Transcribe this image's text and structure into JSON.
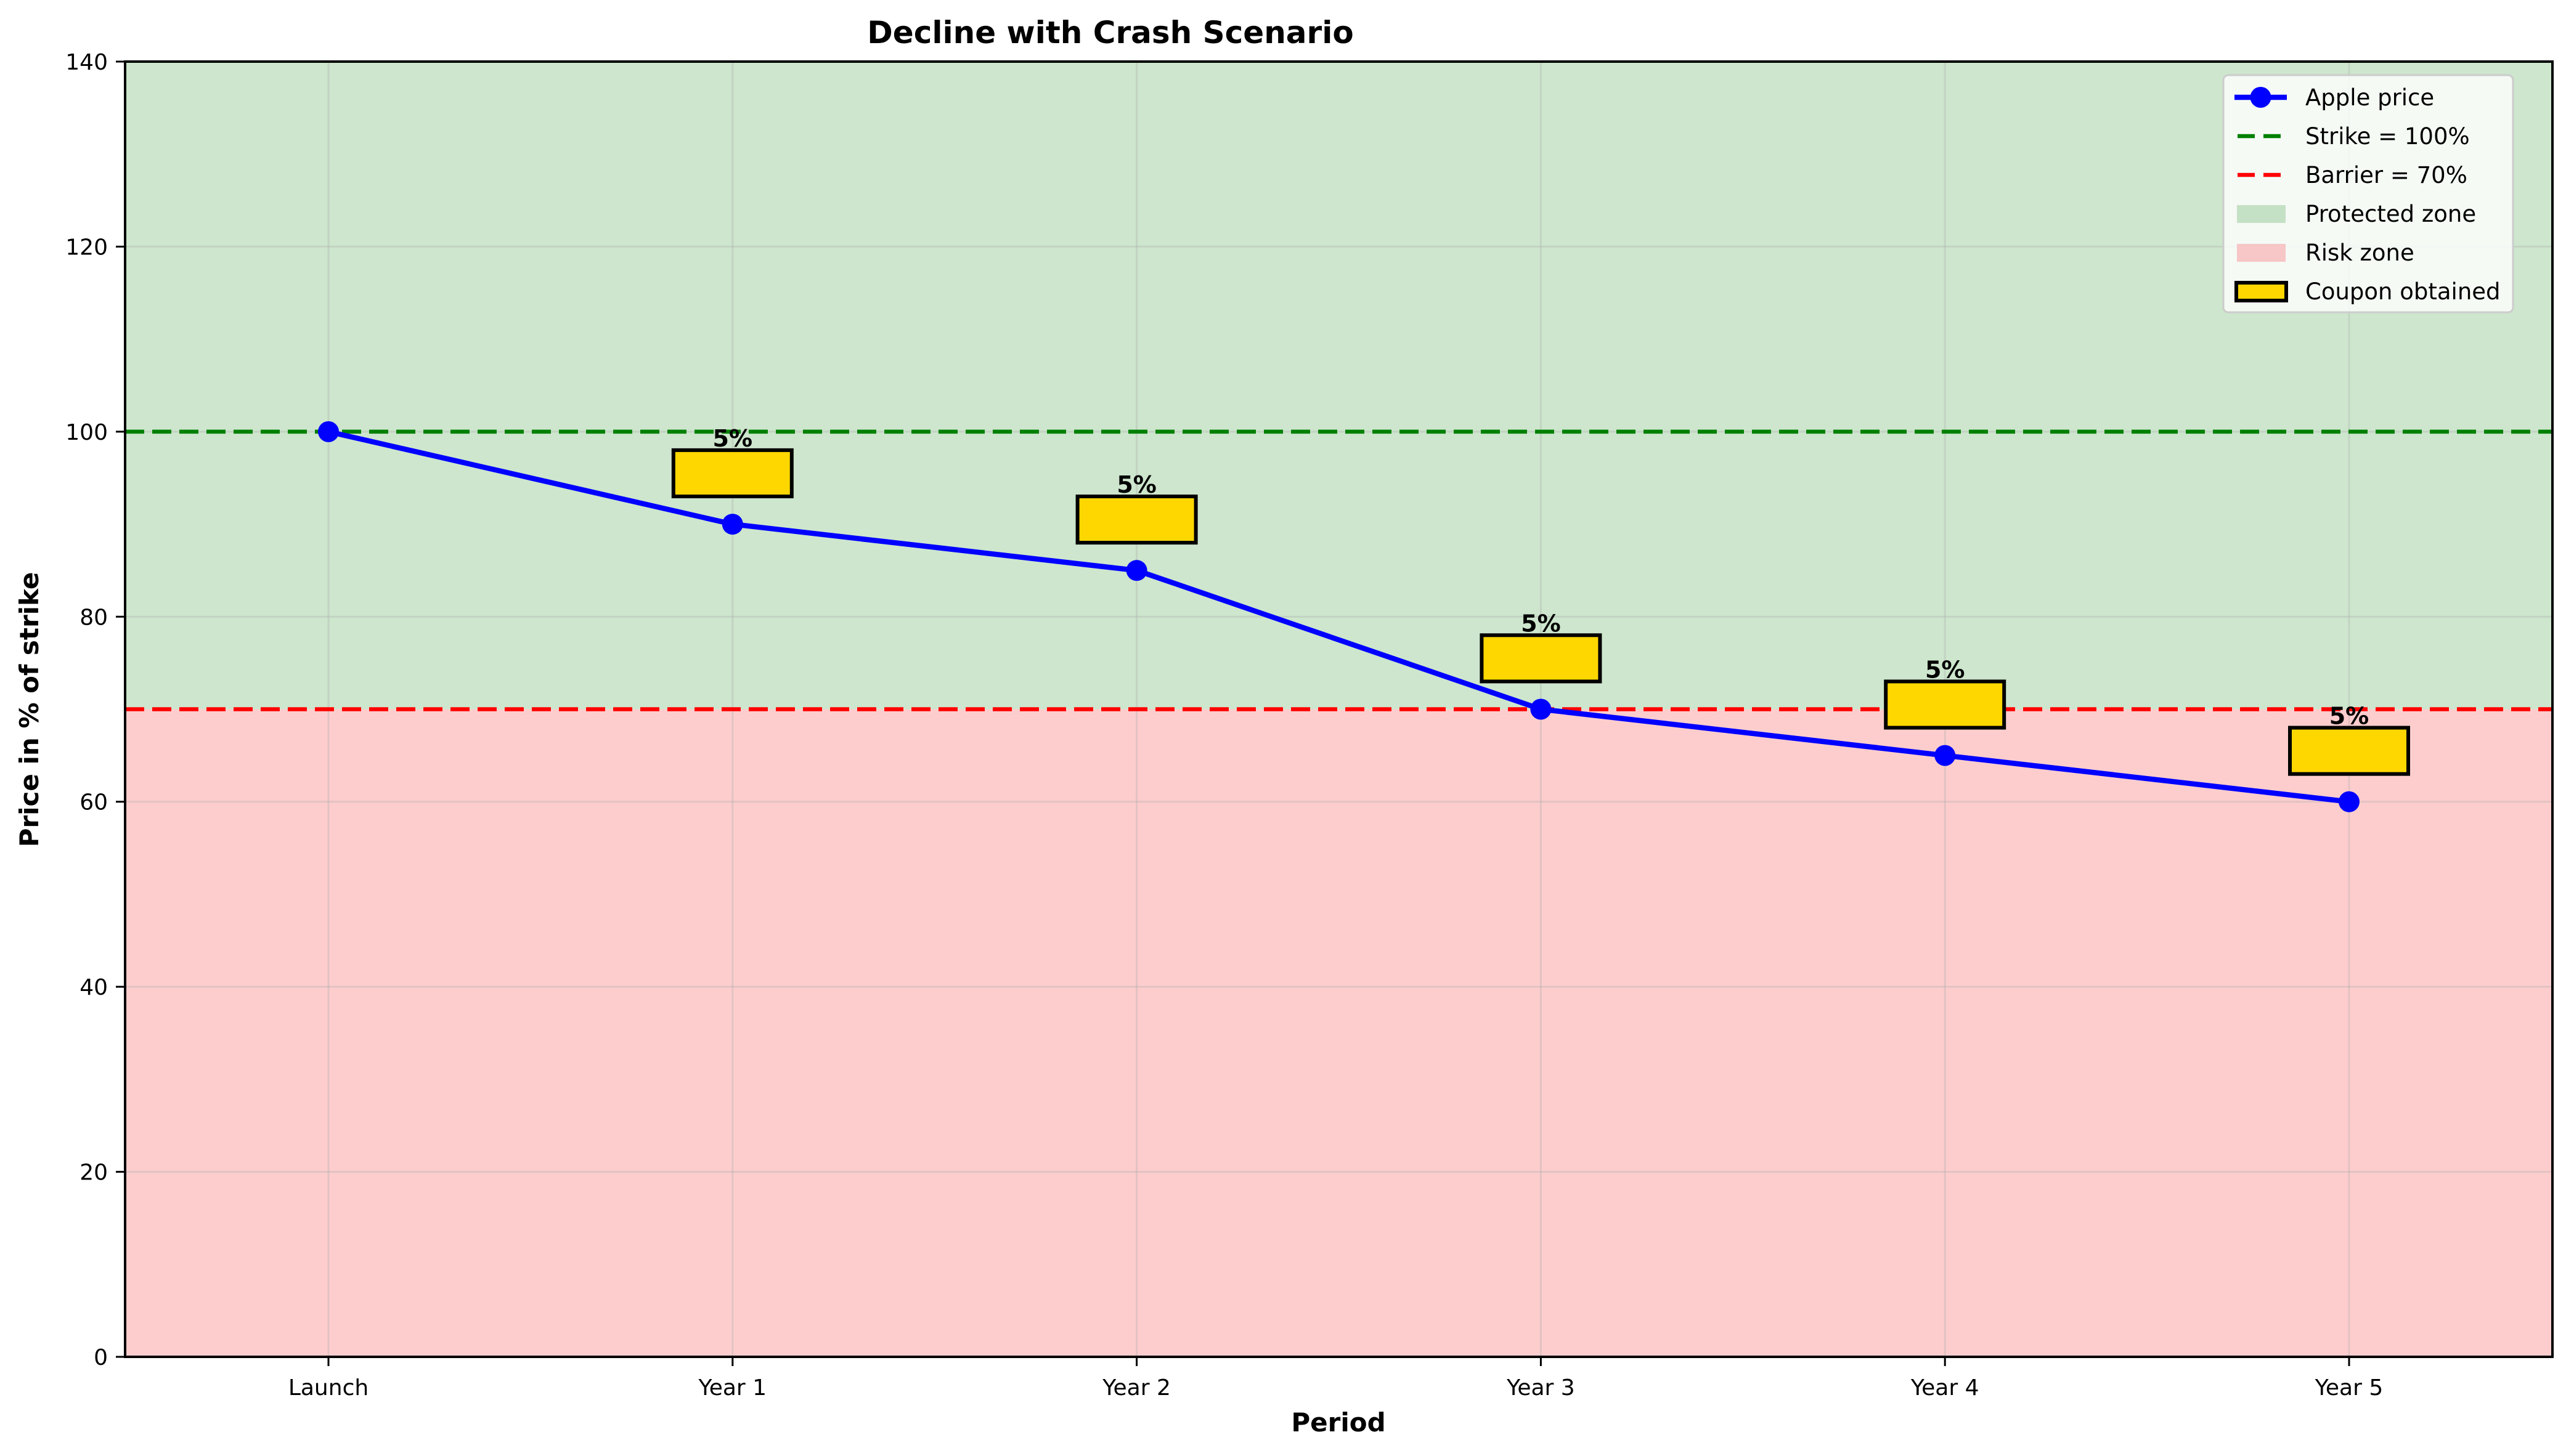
{
  "chart_data": {
    "type": "line",
    "title": "Decline with Crash Scenario",
    "xlabel": "Period",
    "ylabel": "Price in % of strike",
    "categories": [
      "Launch",
      "Year 1",
      "Year 2",
      "Year 3",
      "Year 4",
      "Year 5"
    ],
    "ylim": [
      0,
      140
    ],
    "yticks": [
      0,
      20,
      40,
      60,
      80,
      100,
      120,
      140
    ],
    "grid": true,
    "legend_position": "upper right",
    "series": [
      {
        "name": "Apple price",
        "color": "#0000ff",
        "marker": "circle",
        "values": [
          100,
          90,
          85,
          70,
          65,
          60
        ]
      }
    ],
    "reference_lines": [
      {
        "name": "Strike = 100%",
        "y": 100,
        "color": "#008000",
        "style": "dashed"
      },
      {
        "name": "Barrier = 70%",
        "y": 70,
        "color": "#ff0000",
        "style": "dashed"
      }
    ],
    "zones": [
      {
        "name": "Protected zone",
        "from": 70,
        "to": 140,
        "color": "#c8e3c8"
      },
      {
        "name": "Risk zone",
        "from": 0,
        "to": 70,
        "color": "#fdc8c8"
      }
    ],
    "coupons": {
      "name": "Coupon obtained",
      "color": "#ffd700",
      "items": [
        {
          "period": "Year 1",
          "label": "5%",
          "bottom": 93,
          "top": 98
        },
        {
          "period": "Year 2",
          "label": "5%",
          "bottom": 88,
          "top": 93
        },
        {
          "period": "Year 3",
          "label": "5%",
          "bottom": 73,
          "top": 78
        },
        {
          "period": "Year 4",
          "label": "5%",
          "bottom": 68,
          "top": 73
        },
        {
          "period": "Year 5",
          "label": "5%",
          "bottom": 63,
          "top": 68
        }
      ]
    },
    "legend": [
      "Apple price",
      "Strike = 100%",
      "Barrier = 70%",
      "Protected zone",
      "Risk zone",
      "Coupon obtained"
    ]
  }
}
